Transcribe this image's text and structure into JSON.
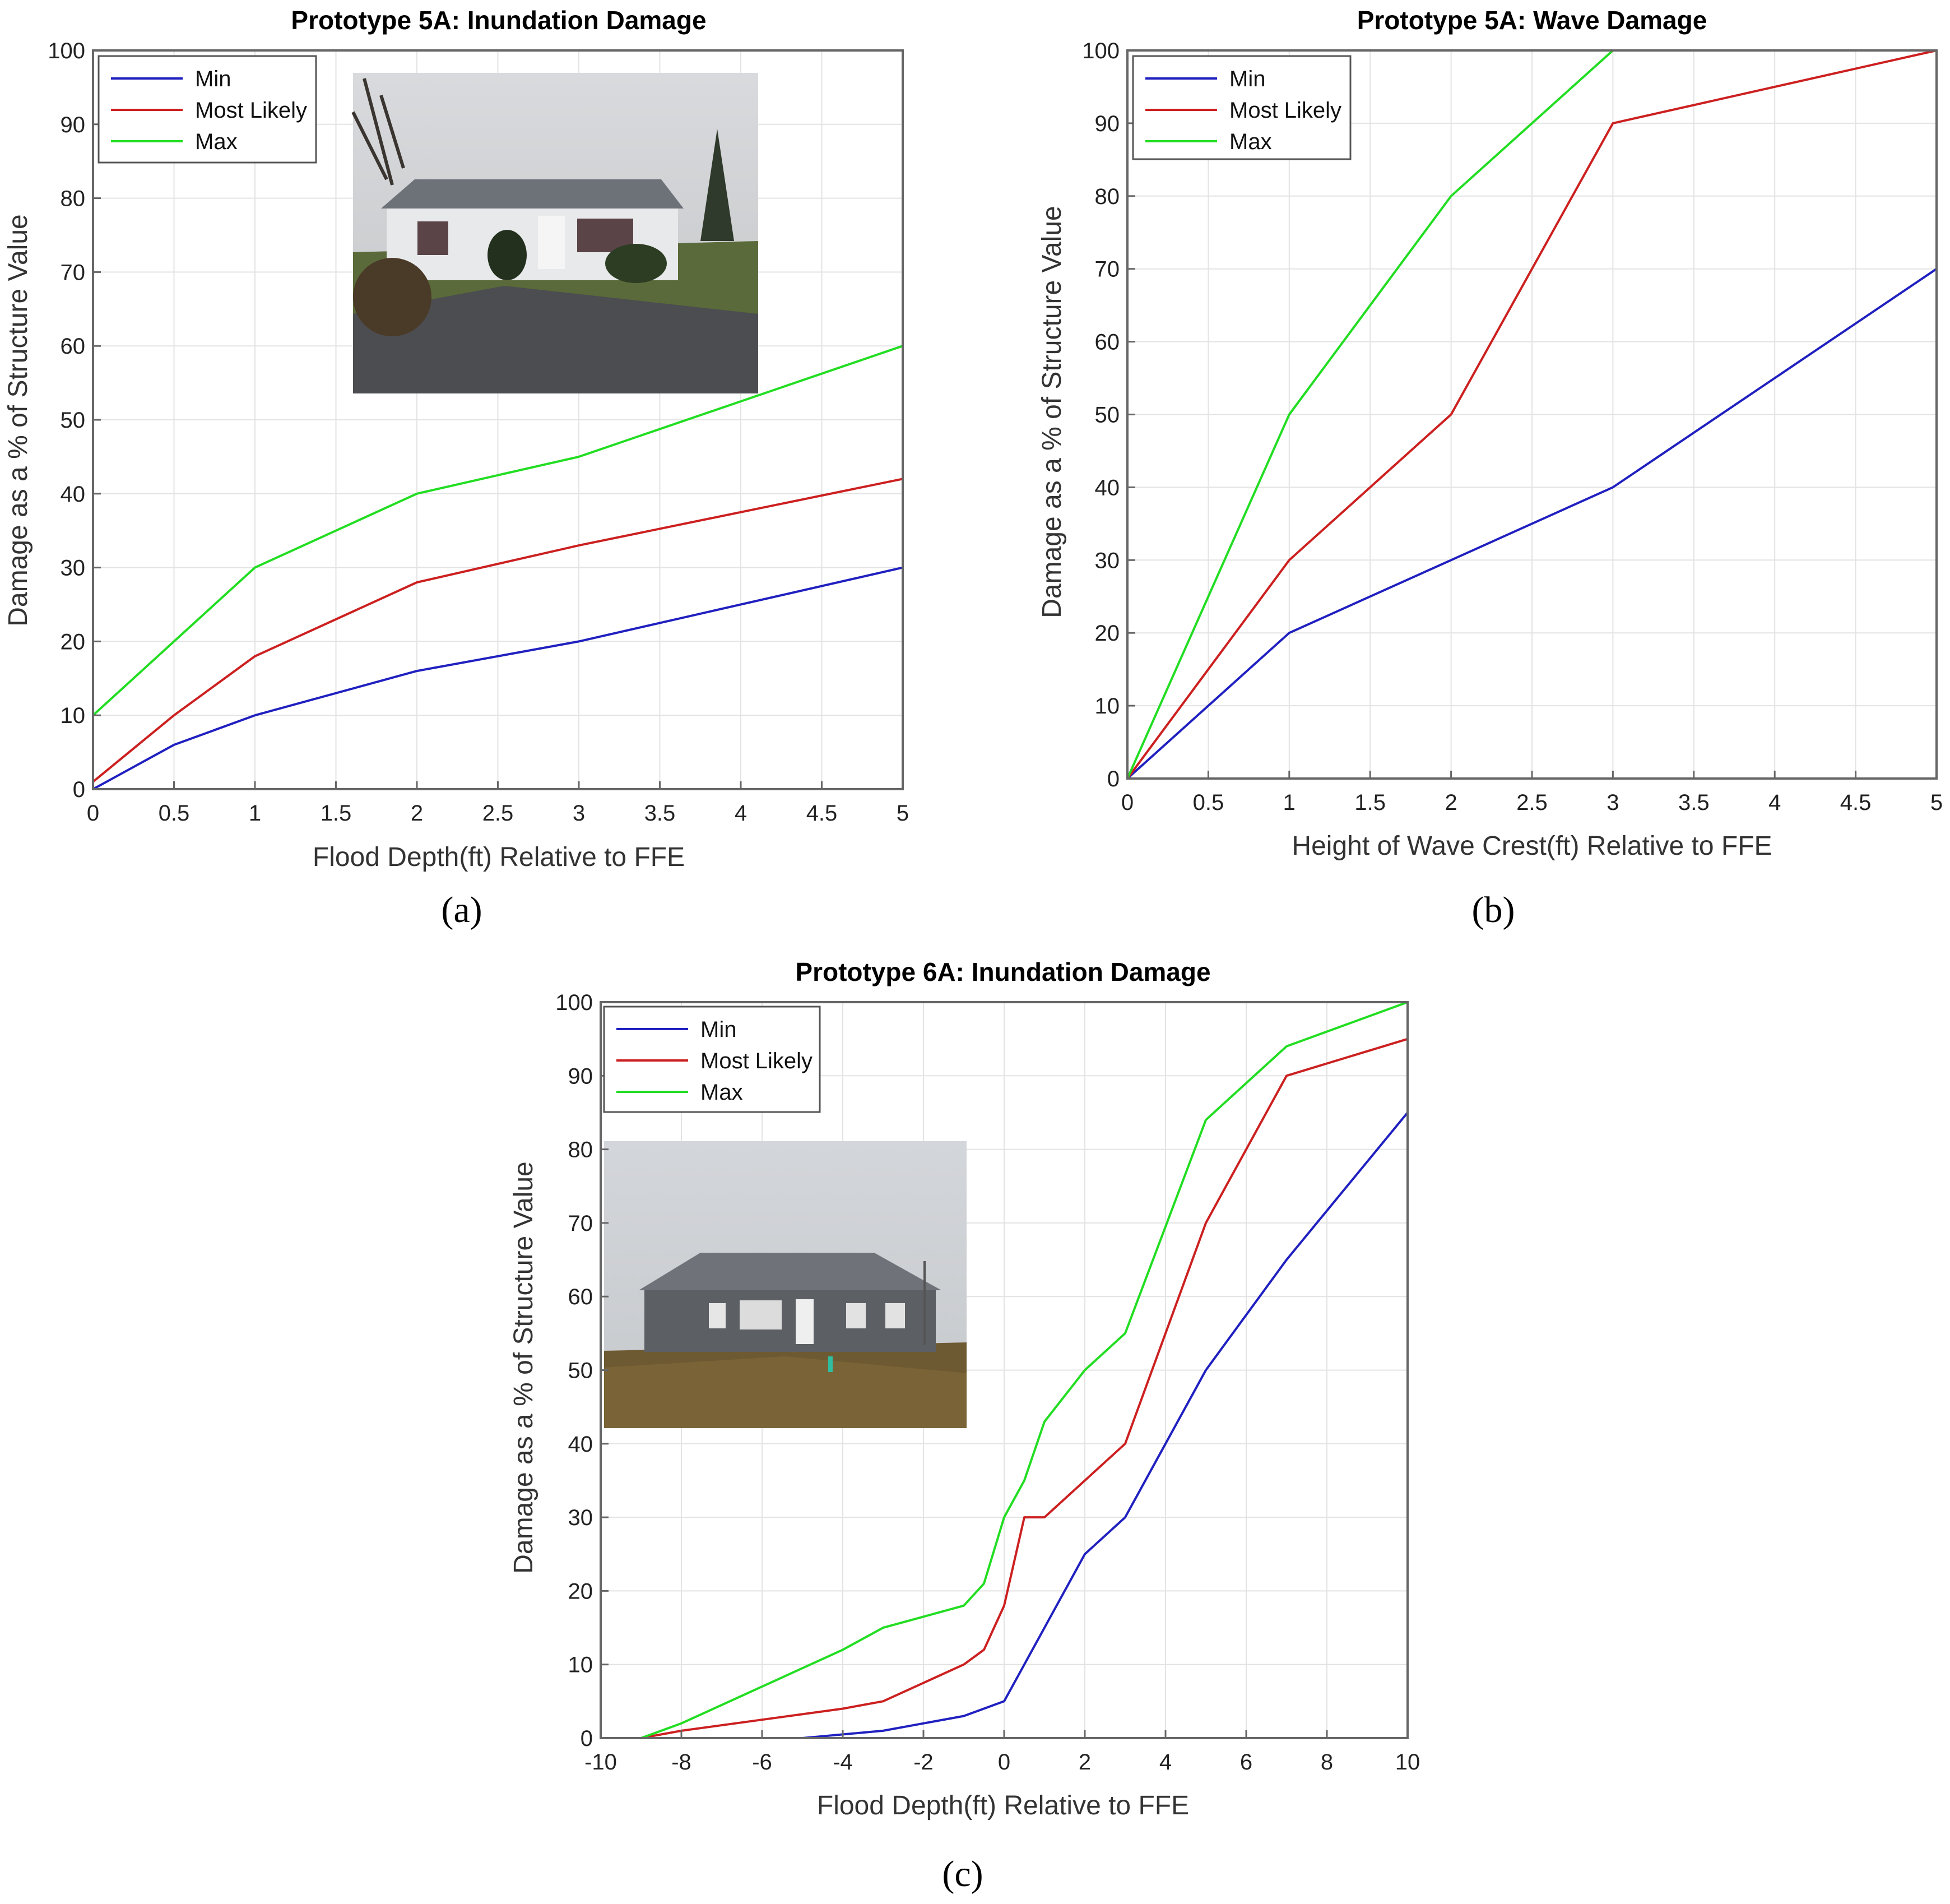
{
  "chart_data": [
    {
      "type": "line",
      "panel": "(a)",
      "title": "Prototype 5A: Inundation Damage",
      "xlabel": "Flood Depth(ft) Relative to FFE",
      "ylabel": "Damage as a % of Structure Value",
      "xlim": [
        0,
        5
      ],
      "ylim": [
        0,
        100
      ],
      "xticks": [
        0,
        0.5,
        1,
        1.5,
        2,
        2.5,
        3,
        3.5,
        4,
        4.5,
        5
      ],
      "yticks": [
        0,
        10,
        20,
        30,
        40,
        50,
        60,
        70,
        80,
        90,
        100
      ],
      "grid": true,
      "legend_position": "top-left",
      "has_photo": true,
      "series": [
        {
          "name": "Min",
          "color": "#2020c0",
          "x": [
            0,
            0.5,
            1,
            2,
            3,
            5
          ],
          "y": [
            0,
            6,
            10,
            16,
            20,
            30
          ]
        },
        {
          "name": "Most Likely",
          "color": "#cc2020",
          "x": [
            0,
            0.5,
            1,
            2,
            3,
            5
          ],
          "y": [
            1,
            10,
            18,
            28,
            33,
            42
          ]
        },
        {
          "name": "Max",
          "color": "#22dd22",
          "x": [
            0,
            0.5,
            1,
            2,
            3,
            5
          ],
          "y": [
            10,
            20,
            30,
            40,
            45,
            60
          ]
        }
      ]
    },
    {
      "type": "line",
      "panel": "(b)",
      "title": "Prototype 5A: Wave Damage",
      "xlabel": "Height of Wave Crest(ft) Relative to FFE",
      "ylabel": "Damage as a % of Structure Value",
      "xlim": [
        0,
        5
      ],
      "ylim": [
        0,
        100
      ],
      "xticks": [
        0,
        0.5,
        1,
        1.5,
        2,
        2.5,
        3,
        3.5,
        4,
        4.5,
        5
      ],
      "yticks": [
        0,
        10,
        20,
        30,
        40,
        50,
        60,
        70,
        80,
        90,
        100
      ],
      "grid": true,
      "legend_position": "top-left",
      "has_photo": false,
      "series": [
        {
          "name": "Min",
          "color": "#2020c0",
          "x": [
            0,
            1,
            2,
            3,
            5
          ],
          "y": [
            0,
            20,
            30,
            40,
            70
          ]
        },
        {
          "name": "Most Likely",
          "color": "#cc2020",
          "x": [
            0,
            1,
            2,
            3,
            5
          ],
          "y": [
            0,
            30,
            50,
            90,
            100
          ]
        },
        {
          "name": "Max",
          "color": "#22dd22",
          "x": [
            0,
            1,
            2,
            3,
            5
          ],
          "y": [
            0,
            50,
            80,
            100,
            100
          ]
        }
      ]
    },
    {
      "type": "line",
      "panel": "(c)",
      "title": "Prototype 6A: Inundation Damage",
      "xlabel": "Flood Depth(ft) Relative to FFE",
      "ylabel": "Damage as a % of Structure Value",
      "xlim": [
        -10,
        10
      ],
      "ylim": [
        0,
        100
      ],
      "xticks": [
        -10,
        -8,
        -6,
        -4,
        -2,
        0,
        2,
        4,
        6,
        8,
        10
      ],
      "yticks": [
        0,
        10,
        20,
        30,
        40,
        50,
        60,
        70,
        80,
        90,
        100
      ],
      "grid": true,
      "legend_position": "top-left",
      "has_photo": true,
      "series": [
        {
          "name": "Min",
          "color": "#2020c0",
          "x": [
            -9,
            -5,
            -3,
            -1,
            0,
            1,
            2,
            3,
            5,
            7,
            10
          ],
          "y": [
            0,
            0,
            1,
            3,
            5,
            15,
            25,
            30,
            50,
            65,
            85
          ]
        },
        {
          "name": "Most Likely",
          "color": "#cc2020",
          "x": [
            -9,
            -8,
            -6,
            -4,
            -3,
            -1,
            -0.5,
            0,
            0.5,
            1,
            3,
            5,
            7,
            10
          ],
          "y": [
            0,
            1,
            2.5,
            4,
            5,
            10,
            12,
            18,
            30,
            30,
            40,
            70,
            90,
            95
          ]
        },
        {
          "name": "Max",
          "color": "#22dd22",
          "x": [
            -9,
            -8,
            -6,
            -4,
            -3,
            -1,
            -0.5,
            0,
            0.5,
            1,
            2,
            3,
            5,
            7,
            10
          ],
          "y": [
            0,
            2,
            7,
            12,
            15,
            18,
            21,
            30,
            35,
            43,
            50,
            55,
            84,
            94,
            100
          ]
        }
      ]
    }
  ]
}
